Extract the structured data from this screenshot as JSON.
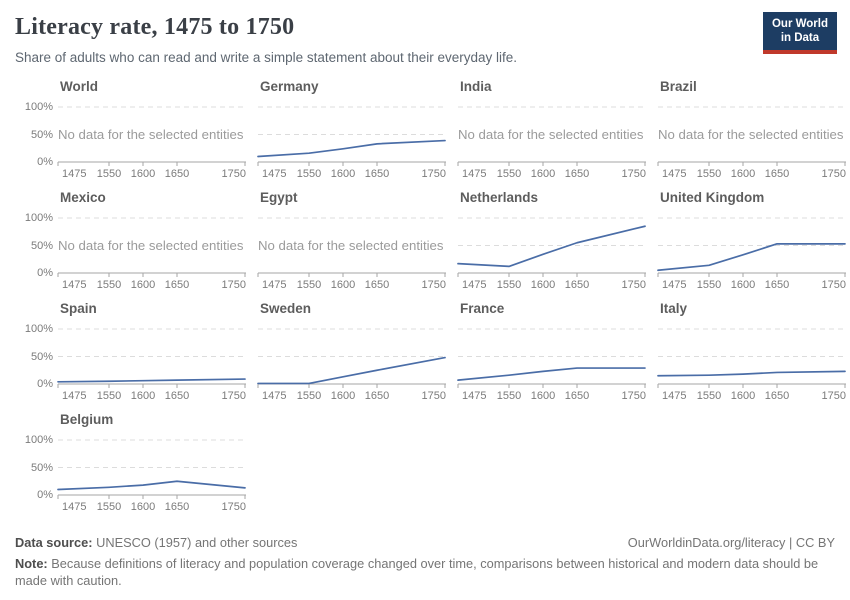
{
  "header": {
    "title": "Literacy rate, 1475 to 1750",
    "subtitle": "Share of adults who can read and write a simple statement about their everyday life.",
    "logo": {
      "line1": "Our World",
      "line2": "in Data",
      "bg_color": "#1d3d63",
      "accent_color": "#c0392b"
    }
  },
  "no_data_message": "No data for the selected entities",
  "line_color": "#4a6da7",
  "axes": {
    "xlim": [
      1475,
      1750
    ],
    "ylim": [
      0,
      100
    ],
    "x_ticks": [
      "1475",
      "1550",
      "1600",
      "1650",
      "1750"
    ],
    "y_tick_labels": [
      "100%",
      "50%",
      "0%"
    ],
    "grid": "dashed horizontal gridlines at 50% and 100%"
  },
  "chart_data": [
    {
      "type": "line",
      "title": "World",
      "no_data": true,
      "x": [
        1475,
        1550,
        1600,
        1650,
        1750
      ],
      "values": null,
      "note": "No data for the selected entities"
    },
    {
      "type": "line",
      "title": "Germany",
      "no_data": false,
      "x": [
        1475,
        1550,
        1600,
        1650,
        1750
      ],
      "values": [
        10,
        16,
        24,
        33,
        39
      ]
    },
    {
      "type": "line",
      "title": "India",
      "no_data": true,
      "x": [
        1475,
        1550,
        1600,
        1650,
        1750
      ],
      "values": null,
      "note": "No data for the selected entities"
    },
    {
      "type": "line",
      "title": "Brazil",
      "no_data": true,
      "x": [
        1475,
        1550,
        1600,
        1650,
        1750
      ],
      "values": null,
      "note": "No data for the selected entities"
    },
    {
      "type": "line",
      "title": "Mexico",
      "no_data": true,
      "x": [
        1475,
        1550,
        1600,
        1650,
        1750
      ],
      "values": null,
      "note": "No data for the selected entities"
    },
    {
      "type": "line",
      "title": "Egypt",
      "no_data": true,
      "x": [
        1475,
        1550,
        1600,
        1650,
        1750
      ],
      "values": null,
      "note": "No data for the selected entities"
    },
    {
      "type": "line",
      "title": "Netherlands",
      "no_data": false,
      "x": [
        1475,
        1550,
        1600,
        1650,
        1750
      ],
      "values": [
        17,
        12,
        34,
        55,
        85
      ]
    },
    {
      "type": "line",
      "title": "United Kingdom",
      "no_data": false,
      "x": [
        1475,
        1550,
        1600,
        1650,
        1750
      ],
      "values": [
        5,
        14,
        33,
        53,
        53
      ]
    },
    {
      "type": "line",
      "title": "Spain",
      "no_data": false,
      "x": [
        1475,
        1550,
        1600,
        1650,
        1750
      ],
      "values": [
        4,
        5,
        6,
        7,
        9
      ]
    },
    {
      "type": "line",
      "title": "Sweden",
      "no_data": false,
      "x": [
        1475,
        1550,
        1600,
        1650,
        1750
      ],
      "values": [
        1,
        1,
        13,
        25,
        48
      ]
    },
    {
      "type": "line",
      "title": "France",
      "no_data": false,
      "x": [
        1475,
        1550,
        1600,
        1650,
        1750
      ],
      "values": [
        7,
        16,
        23,
        29,
        29
      ]
    },
    {
      "type": "line",
      "title": "Italy",
      "no_data": false,
      "x": [
        1475,
        1550,
        1600,
        1650,
        1750
      ],
      "values": [
        15,
        16,
        18,
        21,
        23
      ]
    },
    {
      "type": "line",
      "title": "Belgium",
      "no_data": false,
      "x": [
        1475,
        1550,
        1600,
        1650,
        1750
      ],
      "values": [
        10,
        14,
        18,
        25,
        13
      ]
    }
  ],
  "footer": {
    "source_label": "Data source:",
    "source_text": "UNESCO (1957) and other sources",
    "attribution": "OurWorldinData.org/literacy | CC BY",
    "note_label": "Note:",
    "note_text": "Because definitions of literacy and population coverage changed over time, comparisons between historical and modern data should be made with caution."
  }
}
